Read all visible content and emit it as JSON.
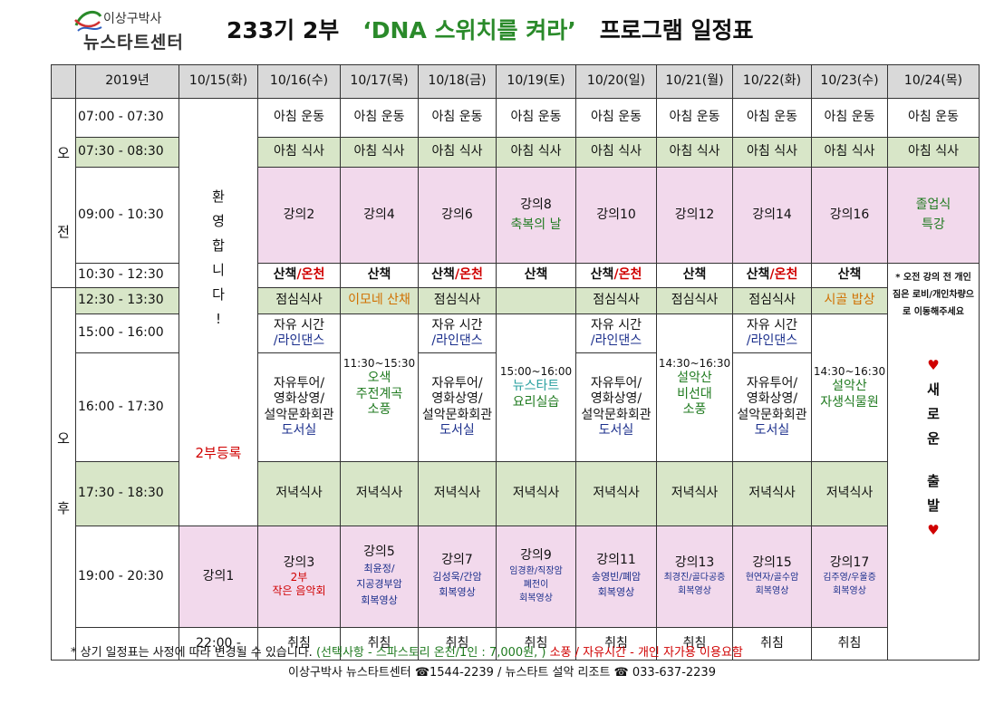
{
  "logo": {
    "line1": "이상구박사",
    "line2": "뉴스타트센터"
  },
  "title": {
    "part1": "233기 2부",
    "part2": "‘DNA 스위치를 켜라’",
    "part3": "프로그램 일정표"
  },
  "header": [
    "2019년",
    "10/15(화)",
    "10/16(수)",
    "10/17(목)",
    "10/18(금)",
    "10/19(토)",
    "10/20(일)",
    "10/21(월)",
    "10/22(화)",
    "10/23(수)",
    "10/24(목)"
  ],
  "periods": {
    "am": [
      "오",
      "전"
    ],
    "pm": [
      "오",
      "후"
    ]
  },
  "times": [
    "07:00 - 07:30",
    "07:30 - 08:30",
    "09:00 - 10:30",
    "10:30 - 12:30",
    "12:30 - 13:30",
    "15:00 - 16:00",
    "16:00 - 17:30",
    "17:30 - 18:30",
    "19:00 - 20:30",
    "22:00 -"
  ],
  "welcome": [
    "환",
    "영",
    "합",
    "니",
    "다",
    "!"
  ],
  "register": "2부등록",
  "exercise": "아침 운동",
  "breakfast": "아침 식사",
  "lectures_am": {
    "d16": "강의2",
    "d17": "강의4",
    "d18": "강의6",
    "d19a": "강의8",
    "d19b": "축복의 날",
    "d20": "강의10",
    "d21": "강의12",
    "d22": "강의14",
    "d23": "강의16",
    "d24a": "졸업식",
    "d24b": "특강"
  },
  "walk": {
    "walk": "산책",
    "slash": "/",
    "onsen": "온천"
  },
  "lunch": {
    "normal": "점심식사",
    "d17": "이모네 산채",
    "d23": "시골 밥상"
  },
  "notice": "* 오전 강의 전 개인 짐은 로비/개인차량으로 이동해주세요",
  "free": {
    "line1": "자유 시간",
    "line2": "/라인댄스"
  },
  "tour": {
    "l1": "자유투어/",
    "l2": "영화상영/",
    "l3": "설악문화회관",
    "l4": "도서실"
  },
  "d17pm": {
    "time": "11:30~15:30",
    "l1": "오색",
    "l2": "주전계곡",
    "l3": "소풍"
  },
  "d19pm": {
    "time": "15:00~16:00",
    "l1": "뉴스타트",
    "l2": "요리실습"
  },
  "d21pm": {
    "time": "14:30~16:30",
    "l1": "설악산",
    "l2": "비선대",
    "l3": "소풍"
  },
  "d23pm": {
    "time": "14:30~16:30",
    "l1": "설악산",
    "l2": "자생식물원"
  },
  "new_start": [
    "♥",
    "새",
    "로",
    "운",
    "",
    "출",
    "발",
    "♥"
  ],
  "dinner": "저녁식사",
  "lectures_pm": {
    "d15": {
      "title": "강의1"
    },
    "d16": {
      "title": "강의3",
      "sub1": "2부",
      "sub2": "작은 음악회"
    },
    "d17": {
      "title": "강의5",
      "sub1": "최윤정/",
      "sub2": "지공경부암",
      "sub3": "회복영상"
    },
    "d18": {
      "title": "강의7",
      "sub1": "김성욱/간암",
      "sub2": "회복영상"
    },
    "d19": {
      "title": "강의9",
      "sub1": "임경환/직장암",
      "sub2": "폐전이",
      "sub3": "회복영상"
    },
    "d20": {
      "title": "강의11",
      "sub1": "송영빈/폐암",
      "sub2": "회복영상"
    },
    "d21": {
      "title": "강의13",
      "sub1": "최경진/골다공증",
      "sub2": "회복영상"
    },
    "d22": {
      "title": "강의15",
      "sub1": "현연자/골수암",
      "sub2": "회복영상"
    },
    "d23": {
      "title": "강의17",
      "sub1": "김주영/우울증",
      "sub2": "회복영상"
    }
  },
  "sleep": "취침",
  "footer": {
    "line1a": "* 상기 일정표는 사정에 따라 변경될 수 있습니다.",
    "line1b": "(선택사항 - 스파스토리 온천/1인 : 7,000원, )",
    "line1c": "소풍 / 자유시간 - 개인 자가용 이용요함",
    "line2": "이상구박사 뉴스타트센터 ☎1544-2239  /  뉴스타트 설악 리조트 ☎ 033-637-2239"
  },
  "colors": {
    "green_row": "#d8e6c8",
    "pink_block": "#f2d9ec",
    "header_grey": "#d9d9d9",
    "accent_red": "#d00000",
    "accent_green": "#1f7a1f"
  }
}
